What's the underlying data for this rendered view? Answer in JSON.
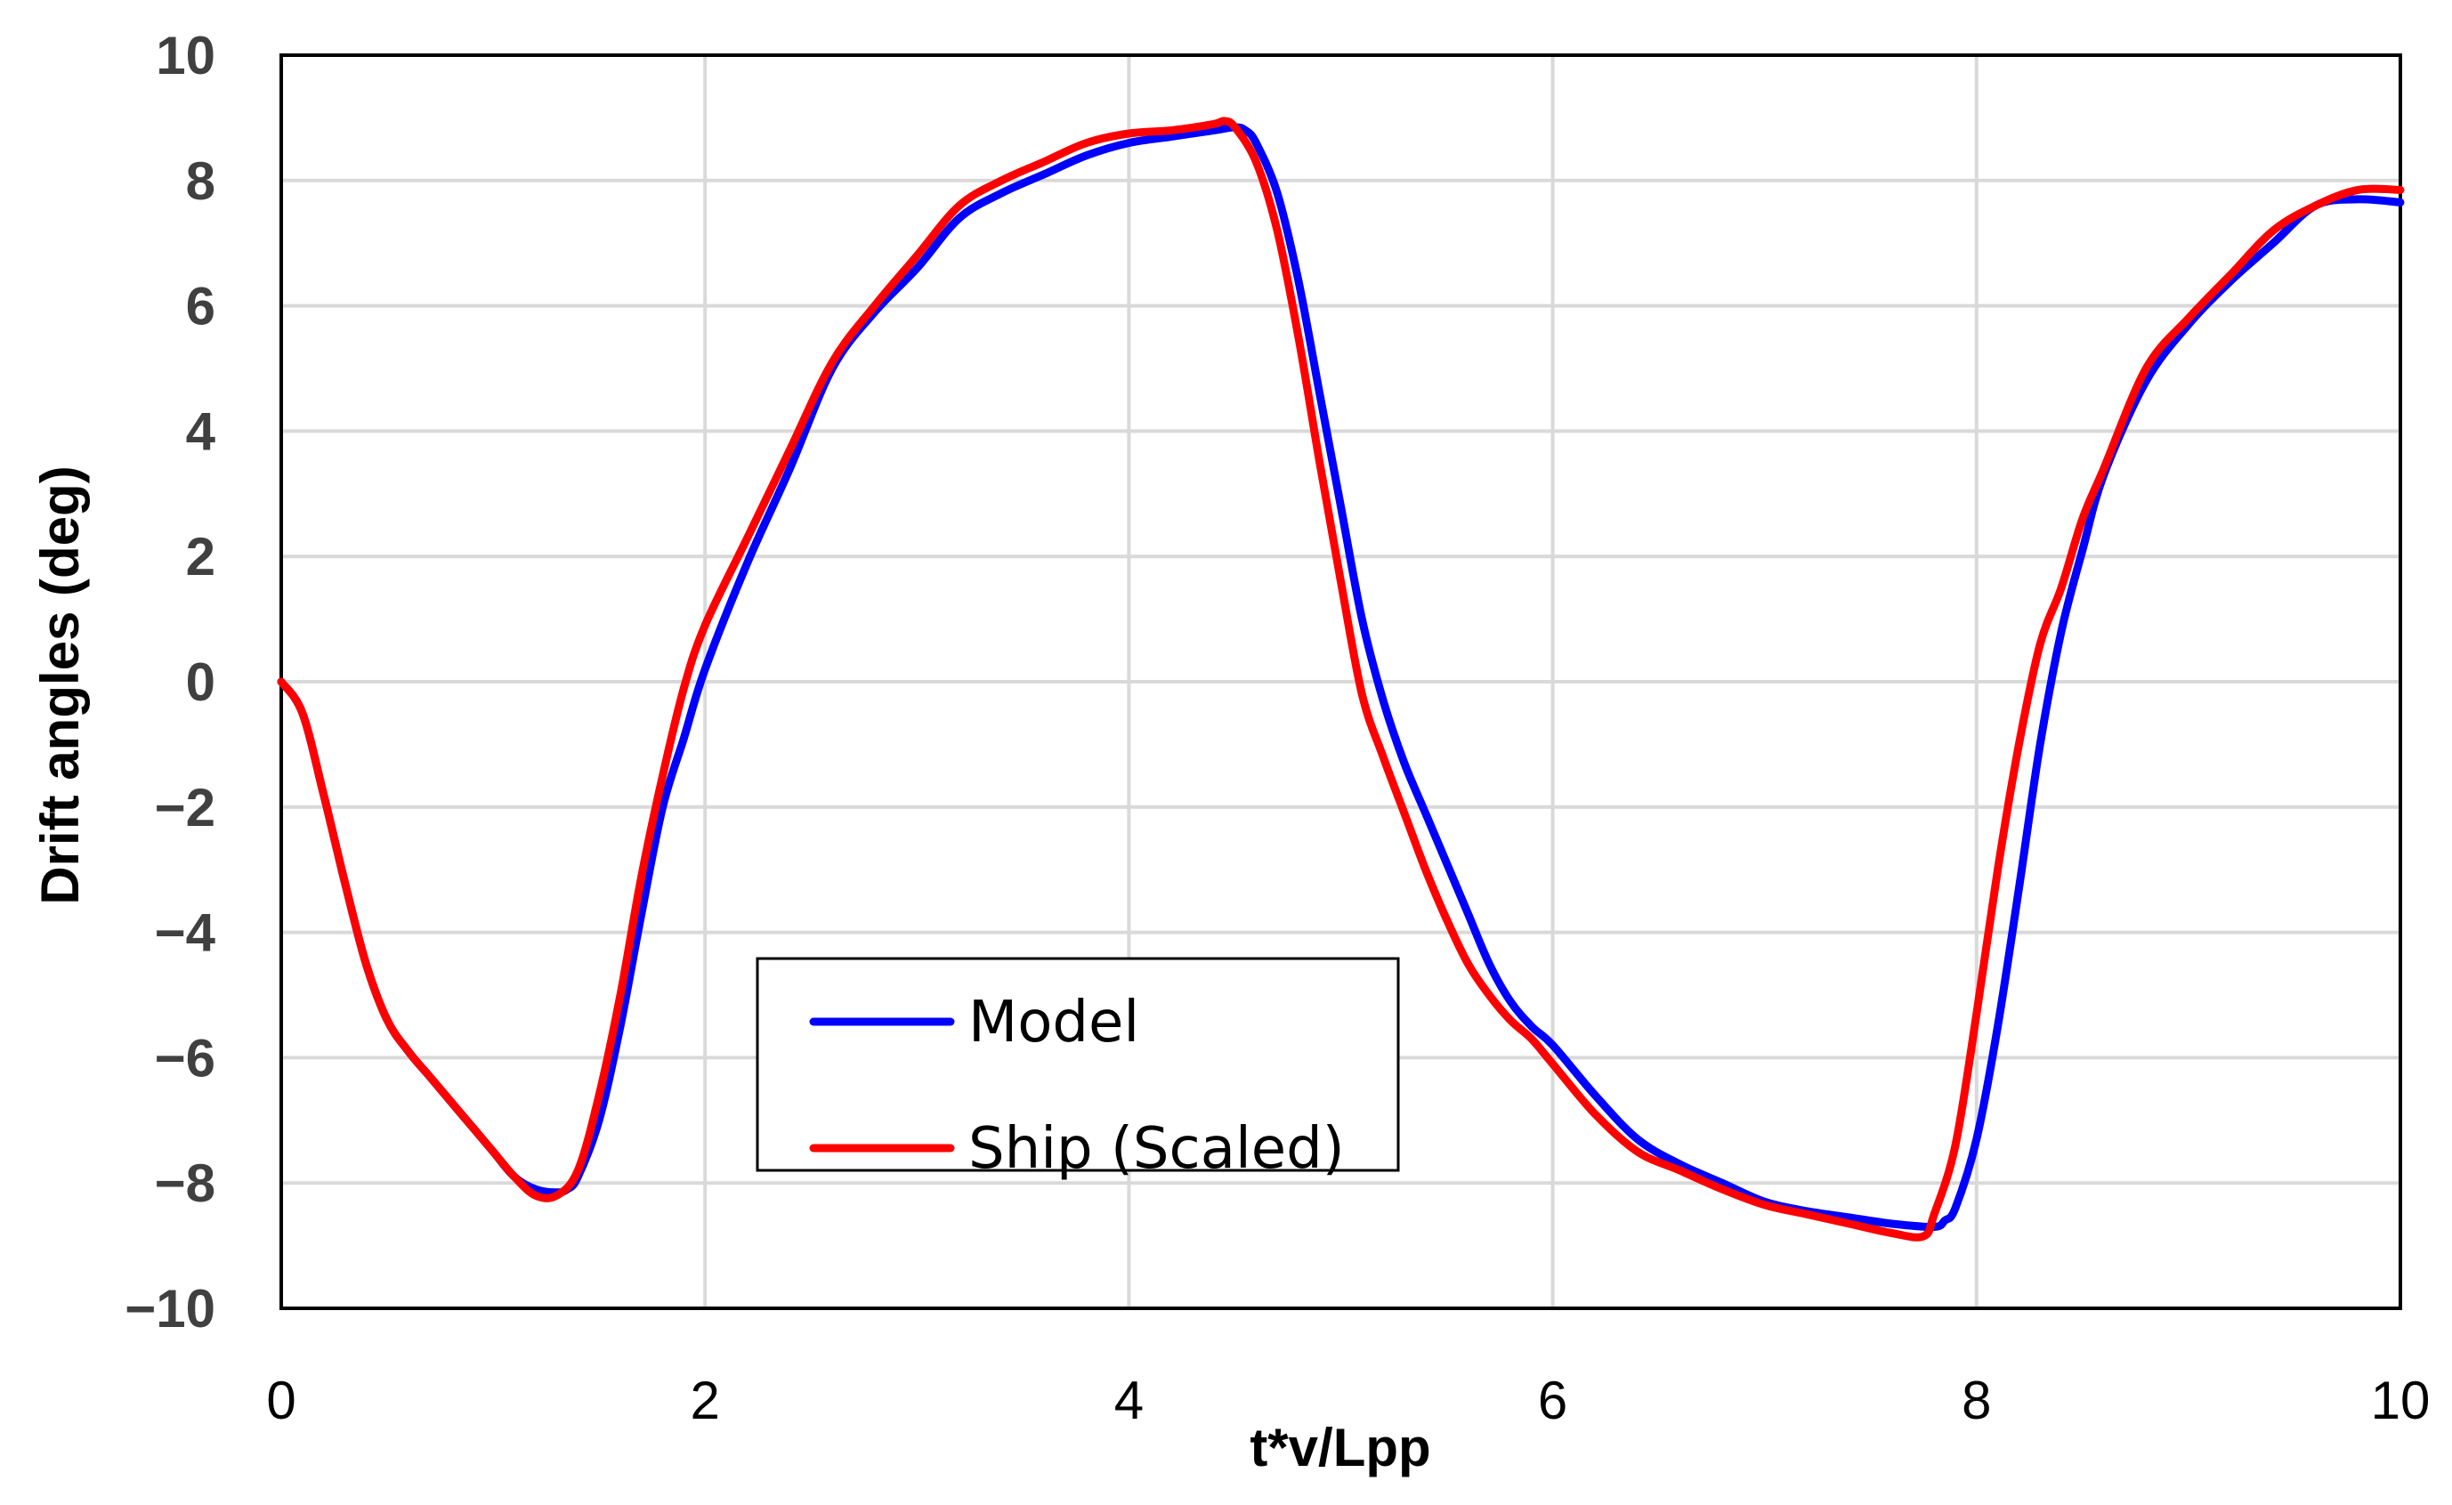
{
  "chart_data": {
    "type": "line",
    "title": "",
    "xlabel": "t*v/Lpp",
    "ylabel": "Drift angles (deg)",
    "xlim": [
      0,
      10
    ],
    "ylim": [
      -10,
      10
    ],
    "grid": true,
    "legend_position": "bottom-center",
    "x_ticks": [
      "0",
      "2",
      "4",
      "6",
      "8",
      "10"
    ],
    "y_ticks": [
      "10",
      "8",
      "6",
      "4",
      "2",
      "0",
      "−2",
      "−4",
      "−6",
      "−8",
      "−10"
    ],
    "x_tick_values": [
      0,
      2,
      4,
      6,
      8,
      10
    ],
    "y_tick_values": [
      10,
      8,
      6,
      4,
      2,
      0,
      -2,
      -4,
      -6,
      -8,
      -10
    ],
    "series": [
      {
        "name": "Model",
        "color": "#0000ff",
        "x": [
          0,
          0.1,
          0.2,
          0.3,
          0.4,
          0.5,
          0.6,
          0.7,
          0.8,
          0.9,
          1.0,
          1.1,
          1.2,
          1.3,
          1.35,
          1.4,
          1.5,
          1.6,
          1.7,
          1.8,
          1.9,
          2.0,
          2.2,
          2.4,
          2.6,
          2.8,
          3.0,
          3.2,
          3.4,
          3.6,
          3.8,
          4.0,
          4.2,
          4.4,
          4.5,
          4.55,
          4.6,
          4.7,
          4.8,
          4.9,
          5.0,
          5.1,
          5.2,
          5.3,
          5.4,
          5.5,
          5.6,
          5.7,
          5.8,
          5.9,
          6.0,
          6.2,
          6.4,
          6.6,
          6.8,
          7.0,
          7.2,
          7.4,
          7.6,
          7.8,
          7.85,
          7.9,
          8.0,
          8.1,
          8.2,
          8.3,
          8.4,
          8.5,
          8.6,
          8.8,
          9.0,
          9.2,
          9.4,
          9.6,
          9.8,
          10.0
        ],
        "y": [
          0,
          -0.5,
          -1.8,
          -3.2,
          -4.5,
          -5.4,
          -5.9,
          -6.3,
          -6.7,
          -7.1,
          -7.5,
          -7.9,
          -8.1,
          -8.15,
          -8.1,
          -7.9,
          -7.0,
          -5.5,
          -3.7,
          -2.0,
          -0.9,
          0.2,
          1.9,
          3.4,
          5.0,
          5.9,
          6.6,
          7.4,
          7.8,
          8.1,
          8.4,
          8.6,
          8.7,
          8.8,
          8.85,
          8.8,
          8.6,
          7.8,
          6.4,
          4.6,
          2.8,
          1.0,
          -0.3,
          -1.3,
          -2.1,
          -2.9,
          -3.7,
          -4.5,
          -5.1,
          -5.5,
          -5.8,
          -6.6,
          -7.3,
          -7.7,
          -8.0,
          -8.3,
          -8.45,
          -8.55,
          -8.65,
          -8.7,
          -8.6,
          -8.4,
          -7.3,
          -5.5,
          -3.3,
          -1.0,
          0.8,
          2.1,
          3.3,
          4.8,
          5.7,
          6.4,
          7.0,
          7.6,
          7.7,
          7.65
        ]
      },
      {
        "name": "Ship (Scaled)",
        "color": "#ff0000",
        "x": [
          0,
          0.1,
          0.2,
          0.3,
          0.4,
          0.5,
          0.6,
          0.7,
          0.8,
          0.9,
          1.0,
          1.1,
          1.2,
          1.3,
          1.4,
          1.5,
          1.6,
          1.7,
          1.8,
          1.9,
          2.0,
          2.2,
          2.4,
          2.6,
          2.8,
          3.0,
          3.2,
          3.4,
          3.6,
          3.8,
          4.0,
          4.2,
          4.4,
          4.45,
          4.5,
          4.6,
          4.7,
          4.8,
          4.9,
          5.0,
          5.1,
          5.2,
          5.3,
          5.4,
          5.5,
          5.6,
          5.7,
          5.8,
          5.9,
          6.0,
          6.2,
          6.4,
          6.6,
          6.8,
          7.0,
          7.2,
          7.4,
          7.6,
          7.75,
          7.8,
          7.9,
          8.0,
          8.1,
          8.2,
          8.3,
          8.4,
          8.5,
          8.6,
          8.8,
          9.0,
          9.2,
          9.4,
          9.6,
          9.8,
          10.0
        ],
        "y": [
          0,
          -0.5,
          -1.8,
          -3.2,
          -4.5,
          -5.4,
          -5.9,
          -6.3,
          -6.7,
          -7.1,
          -7.5,
          -7.9,
          -8.2,
          -8.2,
          -7.8,
          -6.6,
          -5.0,
          -3.1,
          -1.5,
          -0.1,
          0.9,
          2.3,
          3.7,
          5.1,
          6.0,
          6.8,
          7.6,
          8.0,
          8.3,
          8.6,
          8.75,
          8.8,
          8.9,
          8.95,
          8.85,
          8.3,
          7.2,
          5.5,
          3.5,
          1.6,
          -0.2,
          -1.2,
          -2.1,
          -3.0,
          -3.8,
          -4.5,
          -5.0,
          -5.4,
          -5.7,
          -6.1,
          -6.9,
          -7.5,
          -7.8,
          -8.1,
          -8.35,
          -8.5,
          -8.65,
          -8.8,
          -8.85,
          -8.5,
          -7.4,
          -5.3,
          -3.0,
          -1.0,
          0.6,
          1.5,
          2.6,
          3.4,
          5.0,
          5.8,
          6.5,
          7.2,
          7.6,
          7.85,
          7.85
        ]
      }
    ]
  }
}
